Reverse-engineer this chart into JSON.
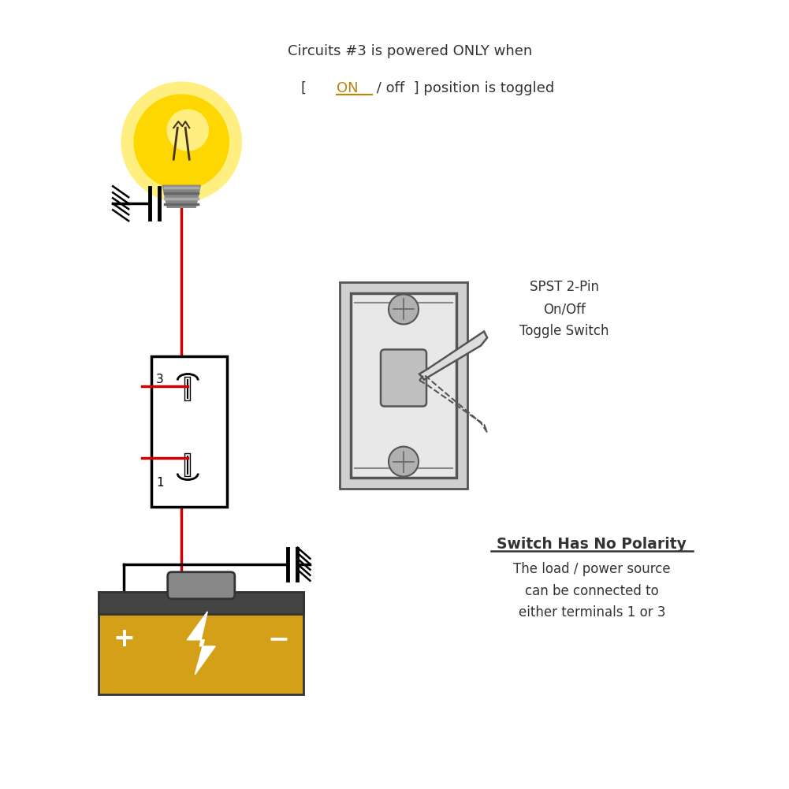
{
  "bg_color": "#ffffff",
  "title_line1": "Circuits #3 is powered ONLY when",
  "title_line2_pre": "[  ",
  "title_line2_on": "ON",
  "title_line2_post": " / off  ] position is toggled",
  "switch_label": "SPST 2-Pin\nOn/Off\nToggle Switch",
  "bottom_label_title": "Switch Has No Polarity",
  "bottom_label_body": "The load / power source\ncan be connected to\neither terminals 1 or 3",
  "wire_color": "#cc0000",
  "black_color": "#000000",
  "on_color": "#b8860b",
  "bulb_yellow": "#FFD700",
  "bulb_glow": "#FFEF80",
  "bulb_gray": "#888888",
  "battery_yellow": "#D4A017",
  "battery_dark": "#444444",
  "battery_gray": "#888888",
  "switch_gray": "#cccccc",
  "switch_light": "#e8e8e8"
}
